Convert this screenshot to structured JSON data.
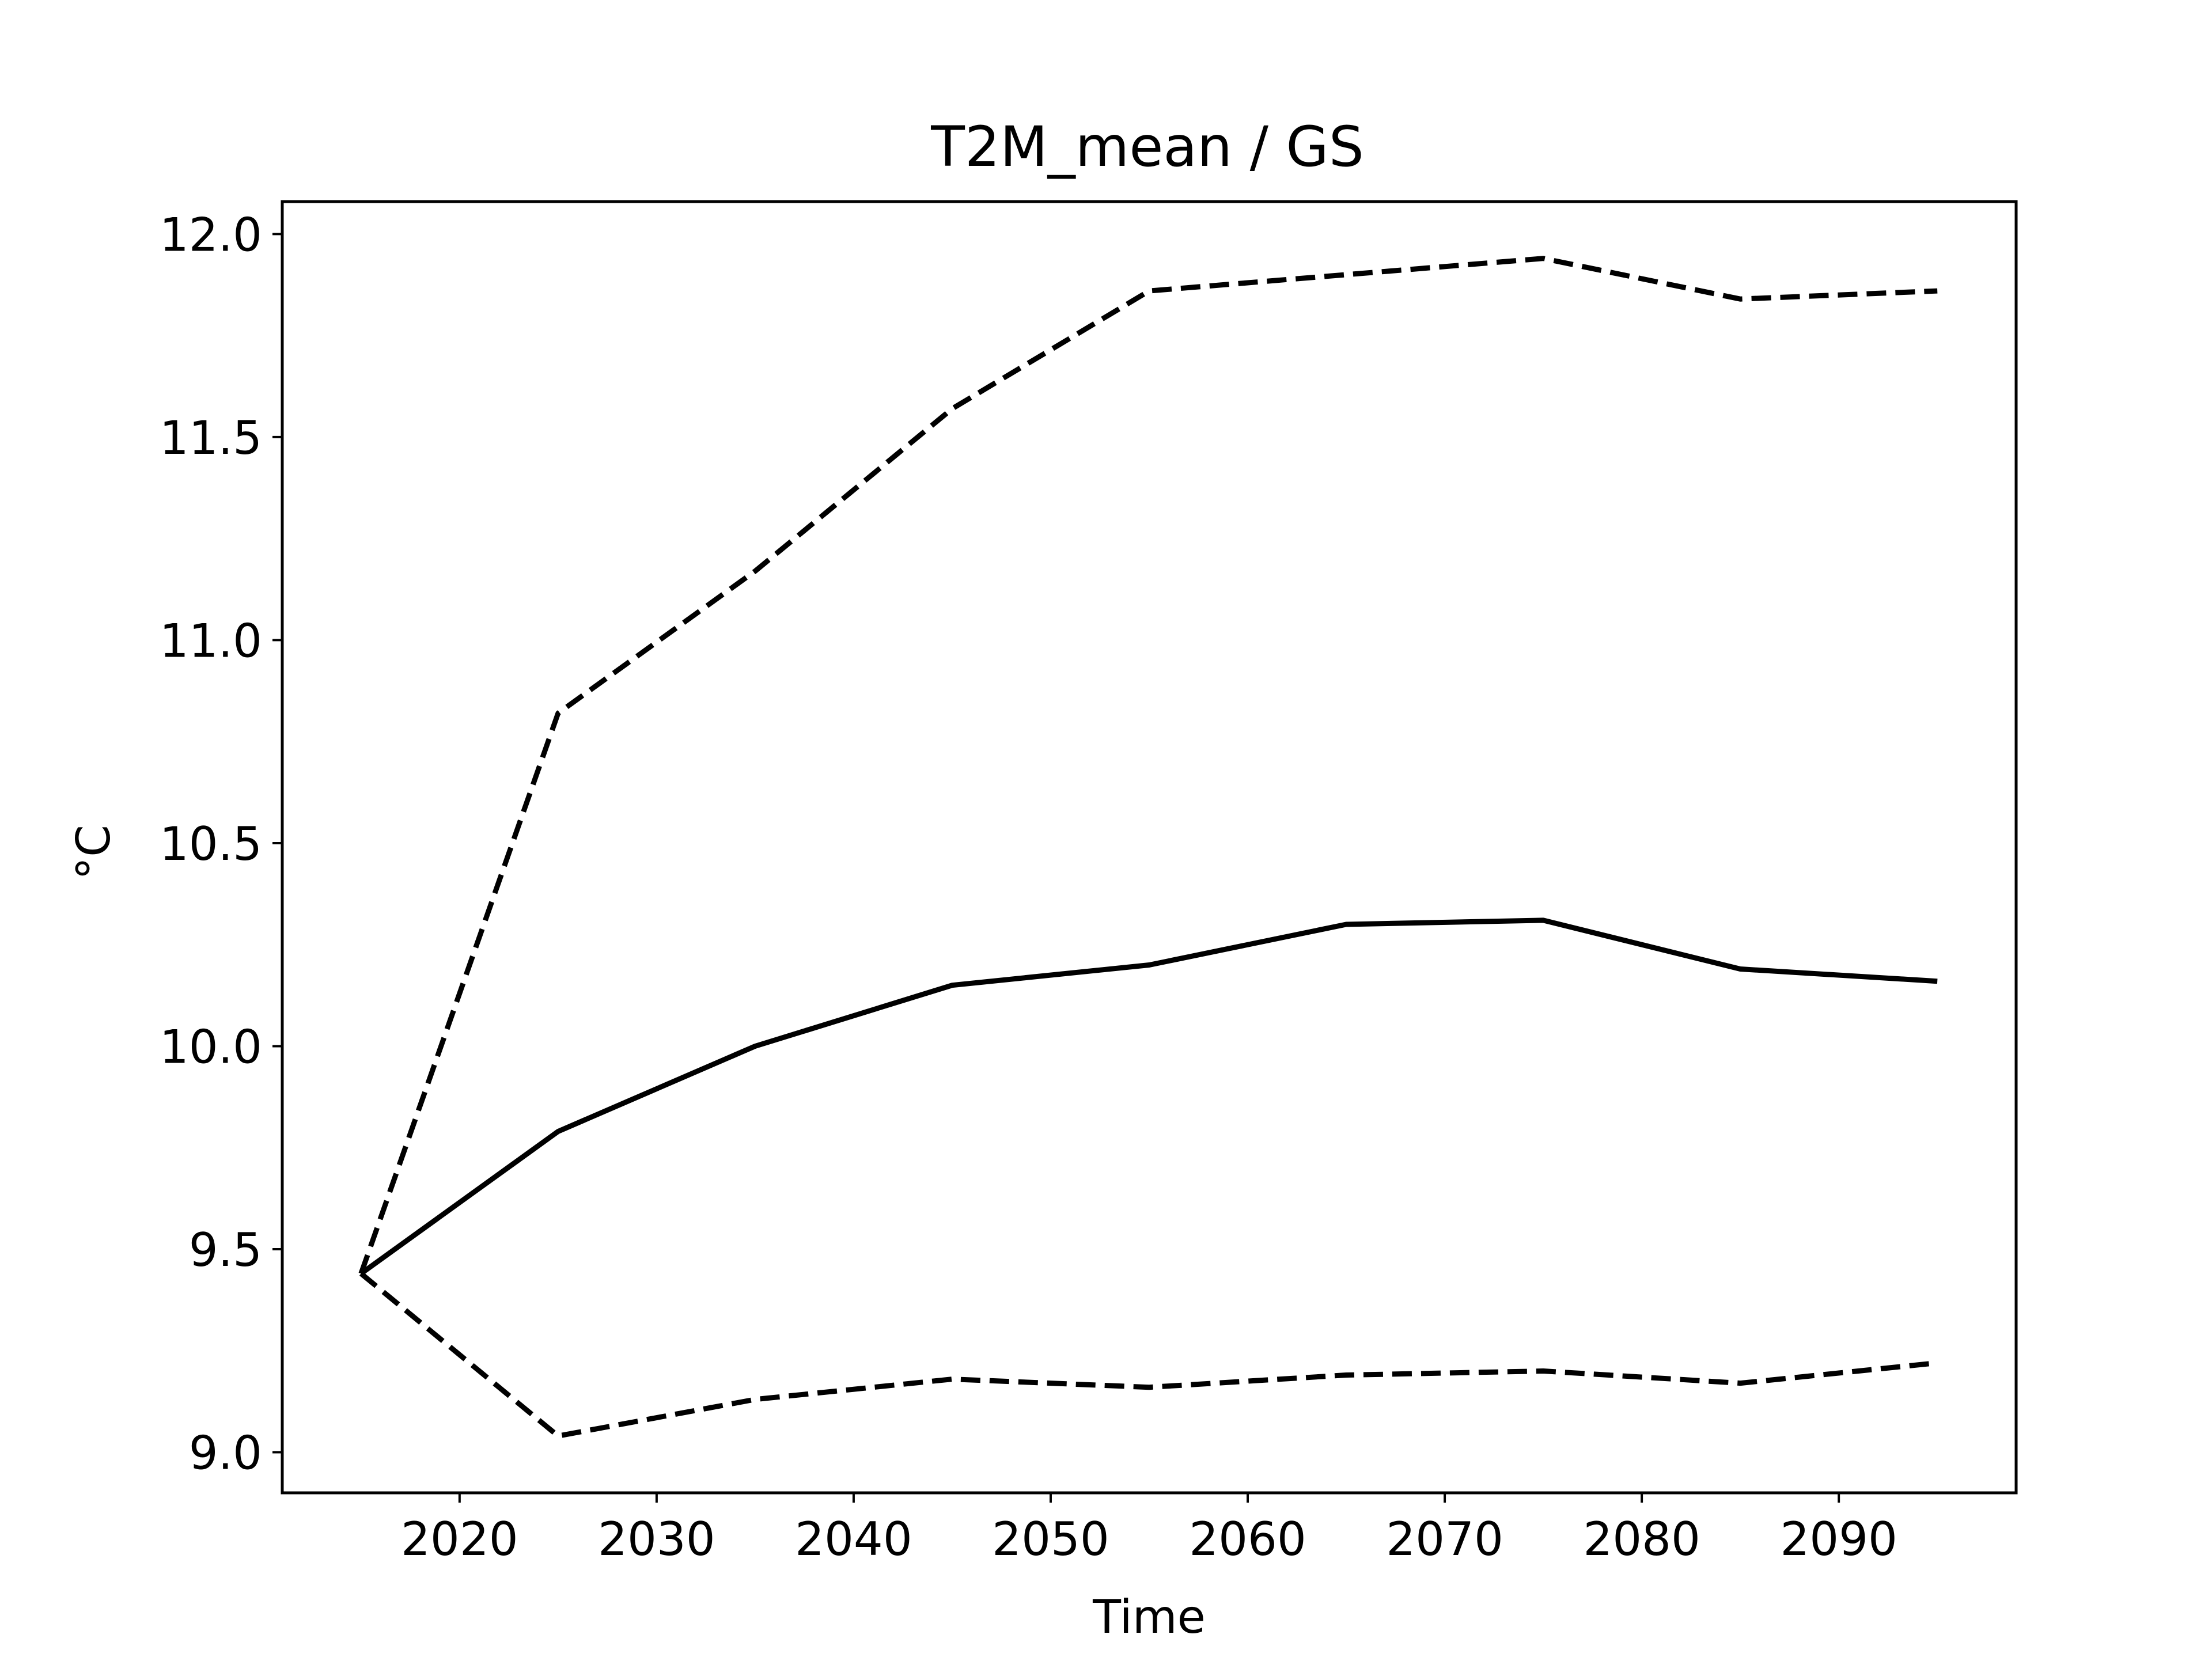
{
  "chart_data": {
    "type": "line",
    "title": "T2M_mean / GS",
    "xlabel": "Time",
    "ylabel": "°C",
    "x": [
      2015,
      2025,
      2035,
      2045,
      2055,
      2065,
      2075,
      2085,
      2095
    ],
    "series": [
      {
        "style": "solid",
        "color": "#000000",
        "values": [
          9.44,
          9.79,
          10.0,
          10.15,
          10.2,
          10.3,
          10.31,
          10.19,
          10.16
        ]
      },
      {
        "style": "dashed",
        "color": "#000000",
        "values": [
          9.44,
          10.82,
          11.17,
          11.57,
          11.86,
          11.9,
          11.94,
          11.84,
          11.86
        ]
      },
      {
        "style": "dashed",
        "color": "#000000",
        "values": [
          9.44,
          9.04,
          9.13,
          9.18,
          9.16,
          9.19,
          9.2,
          9.17,
          9.22
        ]
      }
    ],
    "xlim": [
      2011,
      2099
    ],
    "ylim": [
      8.9,
      12.08
    ],
    "xticks": [
      "2020",
      "2030",
      "2040",
      "2050",
      "2060",
      "2070",
      "2080",
      "2090"
    ],
    "yticks": [
      "9.0",
      "9.5",
      "10.0",
      "10.5",
      "11.0",
      "11.5",
      "12.0"
    ],
    "grid": false,
    "legend": "none"
  }
}
